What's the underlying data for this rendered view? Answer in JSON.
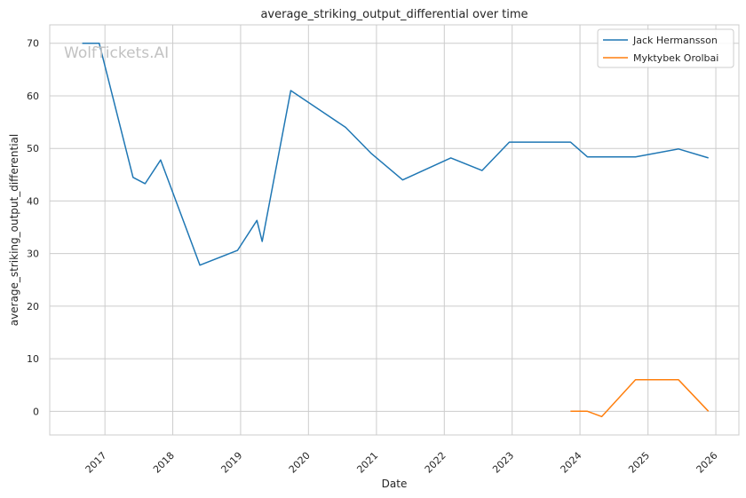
{
  "chart_data": {
    "type": "line",
    "title": "average_striking_output_differential over time",
    "xlabel": "Date",
    "ylabel": "average_striking_output_differential",
    "watermark": "WolfTickets.AI",
    "xlim": [
      "2016-03-10",
      "2026-05-05"
    ],
    "ylim": [
      -4.5,
      73.5
    ],
    "x_ticks": [
      "2017",
      "2018",
      "2019",
      "2020",
      "2021",
      "2022",
      "2023",
      "2024",
      "2025",
      "2026"
    ],
    "y_ticks": [
      0,
      10,
      20,
      30,
      40,
      50,
      60,
      70
    ],
    "grid": true,
    "legend_position": "top-right",
    "series": [
      {
        "name": "Jack Hermansson",
        "color": "#1f77b4",
        "points": [
          [
            "2016-09-01",
            70
          ],
          [
            "2016-12-01",
            70
          ],
          [
            "2017-06-01",
            44.5
          ],
          [
            "2017-08-05",
            43.3
          ],
          [
            "2017-10-28",
            47.8
          ],
          [
            "2018-05-27",
            27.8
          ],
          [
            "2018-12-15",
            30.6
          ],
          [
            "2019-03-30",
            36.3
          ],
          [
            "2019-04-27",
            32.3
          ],
          [
            "2019-09-28",
            61
          ],
          [
            "2020-07-19",
            54
          ],
          [
            "2020-12-05",
            49
          ],
          [
            "2021-05-22",
            44
          ],
          [
            "2022-02-05",
            48.2
          ],
          [
            "2022-07-23",
            45.8
          ],
          [
            "2022-12-17",
            51.2
          ],
          [
            "2023-11-11",
            51.2
          ],
          [
            "2024-02-10",
            48.4
          ],
          [
            "2024-10-26",
            48.4
          ],
          [
            "2025-06-14",
            49.9
          ],
          [
            "2025-11-22",
            48.2
          ]
        ]
      },
      {
        "name": "Myktybek Orolbai",
        "color": "#ff7f0e",
        "points": [
          [
            "2023-11-11",
            0
          ],
          [
            "2024-02-10",
            0
          ],
          [
            "2024-04-27",
            -1
          ],
          [
            "2024-10-26",
            6
          ],
          [
            "2025-06-14",
            6
          ],
          [
            "2025-11-22",
            0
          ]
        ]
      }
    ]
  }
}
